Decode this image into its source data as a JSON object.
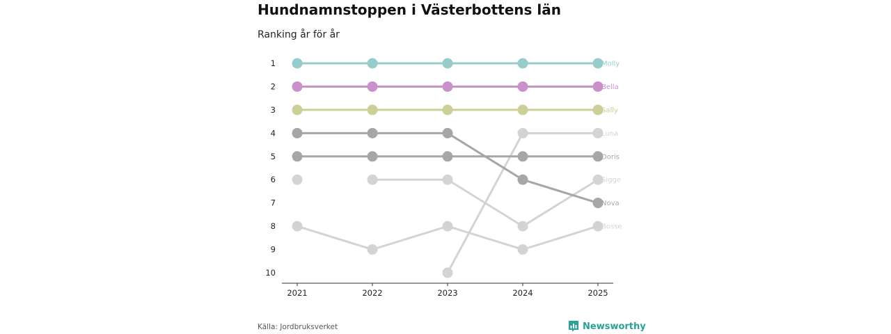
{
  "title": "Hundnamnstoppen i Västerbottens län",
  "subtitle": "Ranking år för år",
  "source": "Källa: Jordbruksverket",
  "brand": {
    "name": "Newsworthy",
    "icon": "newsworthy-logo-icon",
    "color": "#2aa198"
  },
  "chart_data": {
    "type": "line",
    "title": "Hundnamnstoppen i Västerbottens län",
    "subtitle": "Ranking år för år",
    "chart_kind": "bump",
    "x": [
      "2021",
      "2022",
      "2023",
      "2024",
      "2025"
    ],
    "y_ticks": [
      "1",
      "2",
      "3",
      "4",
      "5",
      "6",
      "7",
      "8",
      "9",
      "10"
    ],
    "ylim": [
      1,
      10
    ],
    "y_inverted": true,
    "grid": false,
    "series": [
      {
        "name": "Molly",
        "color": "#96cccb",
        "values": [
          1,
          1,
          1,
          1,
          1
        ]
      },
      {
        "name": "Bella",
        "color": "#c990c9",
        "values": [
          2,
          2,
          2,
          2,
          2
        ]
      },
      {
        "name": "Sally",
        "color": "#cccf98",
        "values": [
          3,
          3,
          3,
          3,
          3
        ]
      },
      {
        "name": "Luna",
        "color": "#d3d3d3",
        "values": [
          6,
          null,
          10,
          4,
          4
        ]
      },
      {
        "name": "Doris",
        "color": "#a6a6a6",
        "values": [
          5,
          5,
          5,
          5,
          5
        ]
      },
      {
        "name": "Sigge",
        "color": "#d3d3d3",
        "values": [
          null,
          6,
          6,
          8,
          6
        ]
      },
      {
        "name": "Nova",
        "color": "#a6a6a6",
        "values": [
          4,
          4,
          4,
          6,
          7
        ]
      },
      {
        "name": "Bosse",
        "color": "#d3d3d3",
        "values": [
          8,
          9,
          8,
          9,
          8
        ]
      }
    ]
  }
}
